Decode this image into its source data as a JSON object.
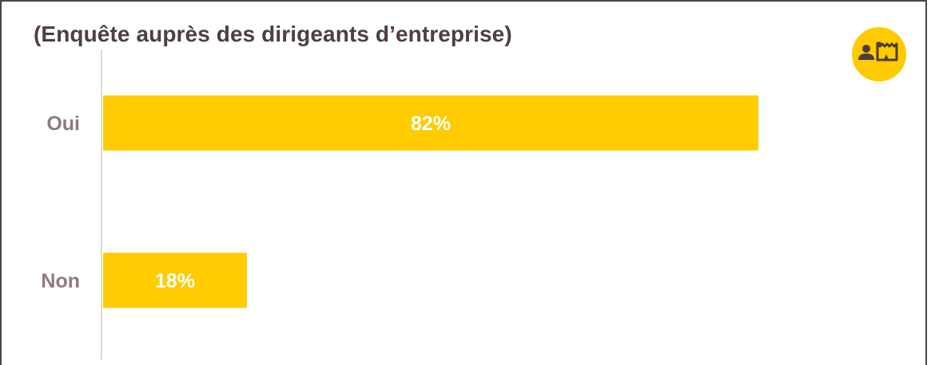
{
  "title": "(Enquête auprès des dirigeants d’entreprise)",
  "icon": "person-factory-icon",
  "colors": {
    "bar": "#ffcc00",
    "label": "#8f7b7d",
    "value": "#ffffff",
    "title": "#4e3f41",
    "axis": "#d9d9d9",
    "badge": "#ffca00"
  },
  "chart_data": {
    "type": "bar",
    "orientation": "horizontal",
    "title": "(Enquête auprès des dirigeants d’entreprise)",
    "categories": [
      "Oui",
      "Non"
    ],
    "values": [
      82,
      18
    ],
    "value_labels": [
      "82%",
      "18%"
    ],
    "xlim": [
      0,
      100
    ],
    "grid": false,
    "legend": "none"
  }
}
